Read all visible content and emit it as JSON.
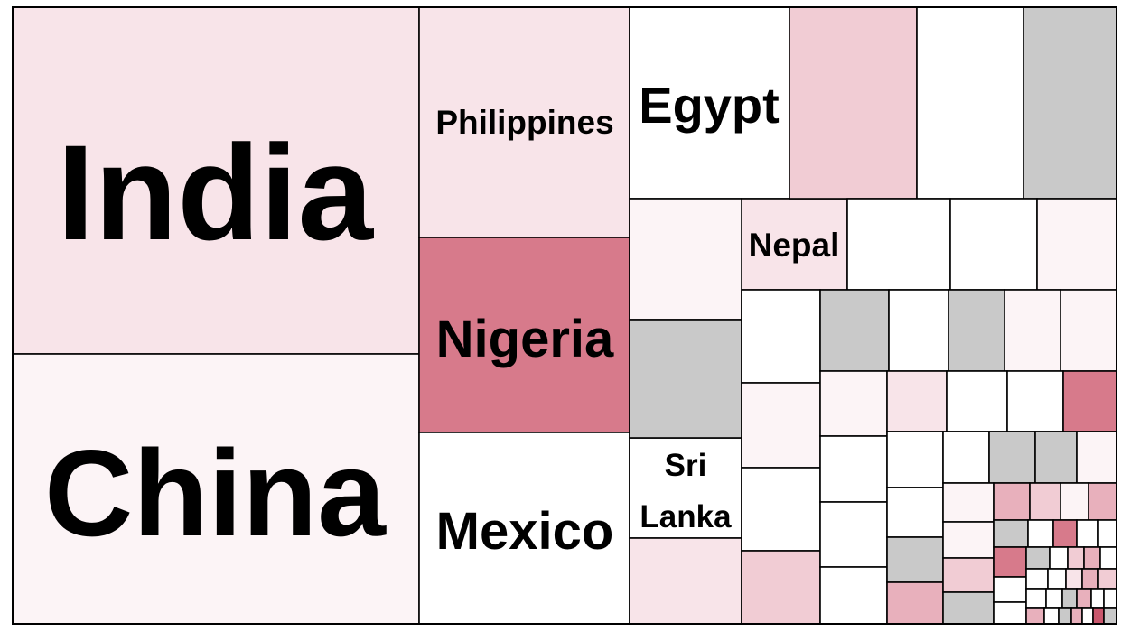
{
  "colors": {
    "white": "#ffffff",
    "very_light_pink": "#fcf4f6",
    "light_pink": "#f8e4e9",
    "pink": "#f1ccd4",
    "medium_pink": "#e8b0bc",
    "dark_pink": "#d77a8b",
    "deep_pink": "#c9576d",
    "gray": "#c9c9c9",
    "border": "#000000"
  },
  "chart_data": {
    "type": "treemap",
    "title": "",
    "labeled_tiles": [
      {
        "label": "India",
        "color": "light_pink"
      },
      {
        "label": "China",
        "color": "very_light_pink"
      },
      {
        "label": "Philippines",
        "color": "light_pink"
      },
      {
        "label": "Nigeria",
        "color": "dark_pink"
      },
      {
        "label": "Mexico",
        "color": "white"
      },
      {
        "label": "Egypt",
        "color": "white"
      },
      {
        "label": "Nepal",
        "color": "light_pink"
      },
      {
        "label": "Sri Lanka",
        "color": "white"
      }
    ],
    "unlabeled_tile_colors": {
      "upper_right_strip": [
        "pink",
        "white",
        "gray"
      ],
      "nepal_row": [
        "white",
        "white",
        "very_light_pink"
      ],
      "left_of_nepal_column": [
        "very_light_pink",
        "gray",
        "light_pink"
      ]
    }
  }
}
